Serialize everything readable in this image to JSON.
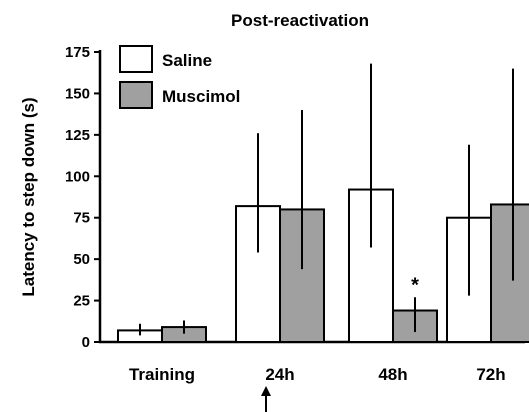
{
  "chart_data": {
    "type": "bar",
    "title": "Post-reactivation",
    "xlabel": "",
    "ylabel": "Latency to step down (s)",
    "ylim": [
      0,
      175
    ],
    "yticks": [
      0,
      25,
      50,
      75,
      100,
      125,
      150,
      175
    ],
    "categories": [
      "Training",
      "24h",
      "48h",
      "72h"
    ],
    "series": [
      {
        "name": "Saline",
        "color": "#ffffff",
        "values": [
          7,
          82,
          92,
          75
        ],
        "error_low": [
          4,
          54,
          57,
          28
        ],
        "error_high": [
          11,
          126,
          168,
          119
        ]
      },
      {
        "name": "Muscimol",
        "color": "#a0a0a0",
        "values": [
          9,
          80,
          19,
          83
        ],
        "error_low": [
          5,
          44,
          6,
          37
        ],
        "error_high": [
          13,
          140,
          27,
          165
        ]
      }
    ],
    "annotations": [
      {
        "text": "*",
        "category": "48h",
        "series": "Muscimol"
      },
      {
        "type": "arrow",
        "category": "24h",
        "direction": "up"
      }
    ],
    "legend_position": "top-left",
    "grid": false
  }
}
